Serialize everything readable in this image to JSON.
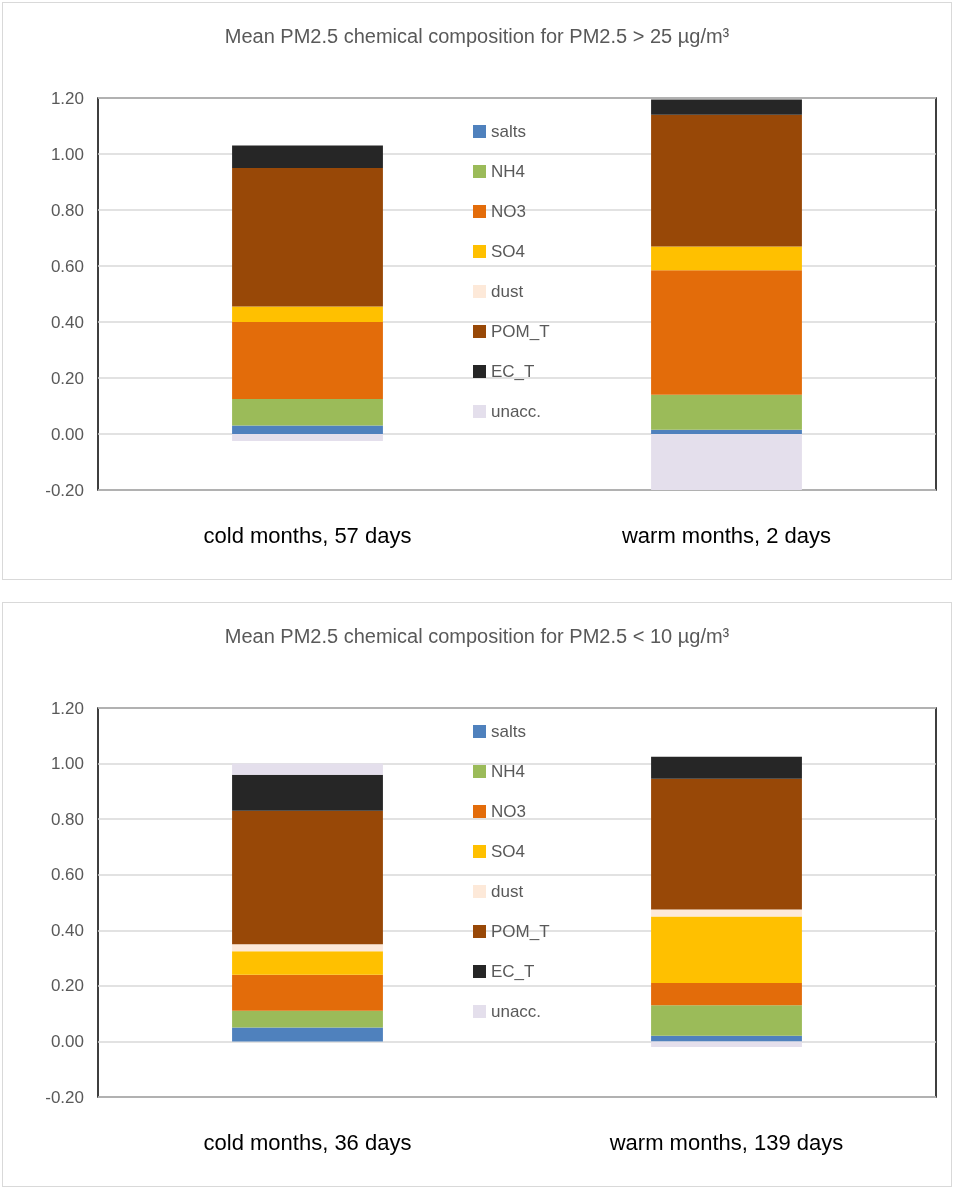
{
  "chart_data": [
    {
      "type": "bar",
      "title": "Mean PM2.5 chemical composition for PM2.5 > 25 µg/m³",
      "categories": [
        "cold months, 57 days",
        "warm months, 2 days"
      ],
      "stacked": true,
      "series": [
        {
          "name": "salts",
          "color": "#4f81bd",
          "values": [
            0.03,
            0.015
          ]
        },
        {
          "name": "NH4",
          "color": "#9bbb59",
          "values": [
            0.095,
            0.125
          ]
        },
        {
          "name": "NO3",
          "color": "#e36c0a",
          "values": [
            0.275,
            0.445
          ]
        },
        {
          "name": "SO4",
          "color": "#ffc000",
          "values": [
            0.055,
            0.085
          ]
        },
        {
          "name": "dust",
          "color": "#fde9d9",
          "values": [
            0,
            0
          ]
        },
        {
          "name": "POM_T",
          "color": "#984807",
          "values": [
            0.495,
            0.47
          ]
        },
        {
          "name": "EC_T",
          "color": "#262626",
          "values": [
            0.08,
            0.055
          ]
        },
        {
          "name": "unacc.",
          "color": "#e4dfec",
          "values": [
            -0.025,
            -0.2
          ]
        }
      ],
      "ylim": [
        -0.2,
        1.2
      ],
      "yticks": [
        {
          "value": -0.2,
          "label": "-0.20"
        },
        {
          "value": 0,
          "label": "0.00"
        },
        {
          "value": 0.2,
          "label": "0.20"
        },
        {
          "value": 0.4,
          "label": "0.40"
        },
        {
          "value": 0.6,
          "label": "0.60"
        },
        {
          "value": 0.8,
          "label": "0.80"
        },
        {
          "value": 1,
          "label": "1.00"
        },
        {
          "value": 1.2,
          "label": "1.20"
        }
      ],
      "grid": "y",
      "legend": "top"
    },
    {
      "type": "bar",
      "title": "Mean PM2.5 chemical composition for PM2.5 < 10 µg/m³",
      "categories": [
        "cold months, 36 days",
        "warm months, 139 days"
      ],
      "stacked": true,
      "series": [
        {
          "name": "salts",
          "color": "#4f81bd",
          "values": [
            0.05,
            0.02
          ]
        },
        {
          "name": "NH4",
          "color": "#9bbb59",
          "values": [
            0.06,
            0.11
          ]
        },
        {
          "name": "NO3",
          "color": "#e36c0a",
          "values": [
            0.13,
            0.08
          ]
        },
        {
          "name": "SO4",
          "color": "#ffc000",
          "values": [
            0.085,
            0.24
          ]
        },
        {
          "name": "dust",
          "color": "#fde9d9",
          "values": [
            0.025,
            0.025
          ]
        },
        {
          "name": "POM_T",
          "color": "#984807",
          "values": [
            0.48,
            0.47
          ]
        },
        {
          "name": "EC_T",
          "color": "#262626",
          "values": [
            0.13,
            0.08
          ]
        },
        {
          "name": "unacc.",
          "color": "#e4dfec",
          "values": [
            0.04,
            -0.02
          ]
        }
      ],
      "ylim": [
        -0.2,
        1.2
      ],
      "yticks": [
        {
          "value": -0.2,
          "label": "-0.20"
        },
        {
          "value": 0,
          "label": "0.00"
        },
        {
          "value": 0.2,
          "label": "0.20"
        },
        {
          "value": 0.4,
          "label": "0.40"
        },
        {
          "value": 0.6,
          "label": "0.60"
        },
        {
          "value": 0.8,
          "label": "0.80"
        },
        {
          "value": 1,
          "label": "1.00"
        },
        {
          "value": 1.2,
          "label": "1.20"
        }
      ],
      "grid": "y",
      "legend": "top"
    }
  ]
}
